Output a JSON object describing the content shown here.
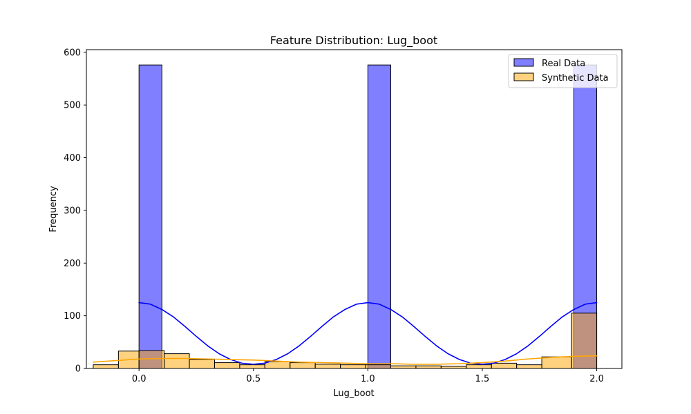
{
  "chart_data": {
    "type": "bar",
    "title": "Feature Distribution: Lug_boot",
    "xlabel": "Lug_boot",
    "ylabel": "Frequency",
    "xlim": [
      -0.23,
      2.11
    ],
    "ylim": [
      0,
      605
    ],
    "xticks": [
      0.0,
      0.5,
      1.0,
      1.5,
      2.0
    ],
    "xtick_labels": [
      "0.0",
      "0.5",
      "1.0",
      "1.5",
      "2.0"
    ],
    "yticks": [
      0,
      100,
      200,
      300,
      400,
      500,
      600
    ],
    "ytick_labels": [
      "0",
      "100",
      "200",
      "300",
      "400",
      "500",
      "600"
    ],
    "grid": false,
    "legend_position": "top-right",
    "series": [
      {
        "name": "Real Data",
        "color": "#0000ff",
        "fill": "#8080ff",
        "bin_edges": [
          0.0,
          0.1,
          0.2,
          0.3,
          0.4,
          0.5,
          0.6,
          0.7,
          0.8,
          0.9,
          1.0,
          1.1,
          1.2,
          1.3,
          1.4,
          1.5,
          1.6,
          1.7,
          1.8,
          1.9,
          2.0
        ],
        "counts": [
          576,
          0,
          0,
          0,
          0,
          0,
          0,
          0,
          0,
          0,
          576,
          0,
          0,
          0,
          0,
          0,
          0,
          0,
          0,
          576
        ],
        "kde": {
          "x": [
            0.0,
            0.05,
            0.1,
            0.15,
            0.2,
            0.25,
            0.3,
            0.35,
            0.4,
            0.45,
            0.5,
            0.55,
            0.6,
            0.65,
            0.7,
            0.75,
            0.8,
            0.85,
            0.9,
            0.95,
            1.0,
            1.05,
            1.1,
            1.15,
            1.2,
            1.25,
            1.3,
            1.35,
            1.4,
            1.45,
            1.5,
            1.55,
            1.6,
            1.65,
            1.7,
            1.75,
            1.8,
            1.85,
            1.9,
            1.95,
            2.0
          ],
          "y": [
            125,
            122,
            112,
            98,
            80,
            61,
            43,
            28,
            17,
            10,
            8,
            10,
            17,
            28,
            43,
            61,
            80,
            98,
            112,
            122,
            125,
            122,
            112,
            98,
            80,
            61,
            43,
            28,
            17,
            10,
            8,
            10,
            17,
            28,
            43,
            61,
            80,
            98,
            112,
            122,
            125
          ]
        }
      },
      {
        "name": "Synthetic Data",
        "color": "#ffa500",
        "fill": "#ffd280",
        "bin_edges": [
          -0.2,
          -0.09,
          0.0,
          0.11,
          0.22,
          0.33,
          0.44,
          0.55,
          0.66,
          0.77,
          0.88,
          0.99,
          1.1,
          1.21,
          1.32,
          1.43,
          1.54,
          1.65,
          1.76,
          1.89,
          2.0
        ],
        "counts": [
          7,
          33,
          34,
          28,
          17,
          11,
          7,
          13,
          11,
          8,
          7,
          7,
          5,
          5,
          4,
          7,
          10,
          7,
          22,
          105
        ],
        "kde": {
          "x": [
            -0.2,
            -0.1,
            0.0,
            0.1,
            0.2,
            0.3,
            0.4,
            0.5,
            0.6,
            0.7,
            0.8,
            0.9,
            1.0,
            1.1,
            1.2,
            1.3,
            1.4,
            1.5,
            1.6,
            1.7,
            1.8,
            1.9,
            2.0
          ],
          "y": [
            12,
            15,
            18,
            19,
            19,
            18,
            17,
            16,
            14,
            12,
            11,
            10,
            9,
            9,
            8,
            8,
            9,
            11,
            14,
            18,
            21,
            23,
            24
          ]
        }
      }
    ]
  }
}
